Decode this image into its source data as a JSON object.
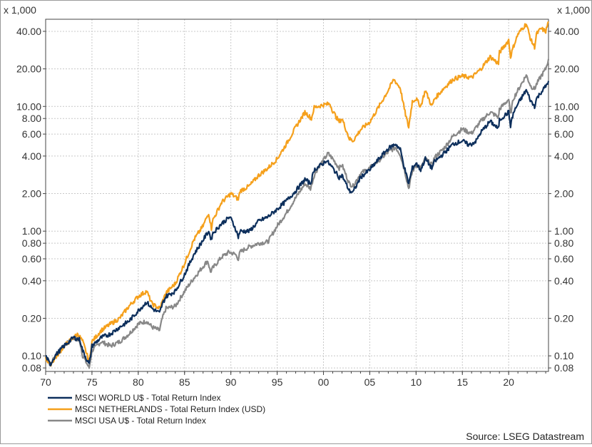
{
  "chart_data": {
    "type": "line",
    "scale_label_left": "x 1,000",
    "scale_label_right": "x 1,000",
    "source": "Source: LSEG Datastream",
    "y_scale": "log",
    "ylim": [
      0.075,
      50
    ],
    "xlim": [
      1970,
      2024.3
    ],
    "grid": true,
    "legend_position": "bottom-left",
    "yticks": [
      {
        "value": 0.08,
        "label": "0.08"
      },
      {
        "value": 0.1,
        "label": "0.10"
      },
      {
        "value": 0.2,
        "label": "0.20"
      },
      {
        "value": 0.4,
        "label": "0.40"
      },
      {
        "value": 0.6,
        "label": "0.60"
      },
      {
        "value": 0.8,
        "label": "0.80"
      },
      {
        "value": 1.0,
        "label": "1.00"
      },
      {
        "value": 2.0,
        "label": "2.00"
      },
      {
        "value": 4.0,
        "label": "4.00"
      },
      {
        "value": 6.0,
        "label": "6.00"
      },
      {
        "value": 8.0,
        "label": "8.00"
      },
      {
        "value": 10.0,
        "label": "10.00"
      },
      {
        "value": 20.0,
        "label": "20.00"
      },
      {
        "value": 40.0,
        "label": "40.00"
      }
    ],
    "xticks": [
      {
        "value": 1970,
        "label": "70"
      },
      {
        "value": 1975,
        "label": "75"
      },
      {
        "value": 1980,
        "label": "80"
      },
      {
        "value": 1985,
        "label": "85"
      },
      {
        "value": 1990,
        "label": "90"
      },
      {
        "value": 1995,
        "label": "95"
      },
      {
        "value": 2000,
        "label": "00"
      },
      {
        "value": 2005,
        "label": "05"
      },
      {
        "value": 2010,
        "label": "10"
      },
      {
        "value": 2015,
        "label": "15"
      },
      {
        "value": 2020,
        "label": "20"
      }
    ],
    "series": [
      {
        "name": "MSCI USA U$ - Total Return Index",
        "color": "#888888",
        "points": [
          [
            1970,
            0.1
          ],
          [
            1970.5,
            0.085
          ],
          [
            1971,
            0.1
          ],
          [
            1972,
            0.12
          ],
          [
            1973,
            0.14
          ],
          [
            1973.7,
            0.13
          ],
          [
            1974,
            0.1
          ],
          [
            1974.7,
            0.08
          ],
          [
            1975,
            0.11
          ],
          [
            1976,
            0.13
          ],
          [
            1977,
            0.12
          ],
          [
            1978,
            0.13
          ],
          [
            1979,
            0.15
          ],
          [
            1980,
            0.18
          ],
          [
            1980.9,
            0.19
          ],
          [
            1981.5,
            0.17
          ],
          [
            1982.3,
            0.16
          ],
          [
            1982.6,
            0.2
          ],
          [
            1983,
            0.24
          ],
          [
            1984,
            0.25
          ],
          [
            1985,
            0.33
          ],
          [
            1986,
            0.42
          ],
          [
            1987.5,
            0.58
          ],
          [
            1987.8,
            0.47
          ],
          [
            1988,
            0.5
          ],
          [
            1989,
            0.62
          ],
          [
            1989.8,
            0.68
          ],
          [
            1990.5,
            0.65
          ],
          [
            1990.8,
            0.6
          ],
          [
            1991,
            0.68
          ],
          [
            1992,
            0.75
          ],
          [
            1993,
            0.8
          ],
          [
            1994,
            0.82
          ],
          [
            1995,
            1.1
          ],
          [
            1996,
            1.4
          ],
          [
            1997,
            1.85
          ],
          [
            1998,
            2.4
          ],
          [
            1998.6,
            2.2
          ],
          [
            1999,
            2.8
          ],
          [
            1999.5,
            3.3
          ],
          [
            2000,
            3.7
          ],
          [
            2000.5,
            4.2
          ],
          [
            2001,
            3.8
          ],
          [
            2001.7,
            3.2
          ],
          [
            2002,
            3.4
          ],
          [
            2002.8,
            2.4
          ],
          [
            2003.2,
            2.3
          ],
          [
            2004,
            2.9
          ],
          [
            2005,
            3.2
          ],
          [
            2006,
            3.7
          ],
          [
            2007,
            4.3
          ],
          [
            2007.8,
            4.7
          ],
          [
            2008.3,
            4.1
          ],
          [
            2008.8,
            3.0
          ],
          [
            2009.2,
            2.2
          ],
          [
            2009.6,
            3.0
          ],
          [
            2010,
            3.4
          ],
          [
            2010.5,
            3.2
          ],
          [
            2011,
            3.8
          ],
          [
            2011.7,
            3.4
          ],
          [
            2012,
            3.9
          ],
          [
            2013,
            4.6
          ],
          [
            2014,
            5.8
          ],
          [
            2015,
            6.6
          ],
          [
            2015.7,
            6.2
          ],
          [
            2016,
            6.1
          ],
          [
            2016.5,
            6.8
          ],
          [
            2017,
            7.6
          ],
          [
            2018,
            9.0
          ],
          [
            2018.9,
            8.2
          ],
          [
            2019,
            9.5
          ],
          [
            2020,
            11.4
          ],
          [
            2020.2,
            8.6
          ],
          [
            2020.5,
            11.5
          ],
          [
            2021,
            13.5
          ],
          [
            2021.9,
            17.8
          ],
          [
            2022.4,
            14.5
          ],
          [
            2022.8,
            13.8
          ],
          [
            2023,
            15.0
          ],
          [
            2023.5,
            17.5
          ],
          [
            2024,
            20.0
          ],
          [
            2024.3,
            24.0
          ]
        ]
      },
      {
        "name": "MSCI NETHERLANDS - Total Return Index (USD)",
        "color": "#f5a01c",
        "points": [
          [
            1970,
            0.095
          ],
          [
            1970.5,
            0.085
          ],
          [
            1971,
            0.095
          ],
          [
            1972,
            0.12
          ],
          [
            1973,
            0.14
          ],
          [
            1973.5,
            0.15
          ],
          [
            1974,
            0.13
          ],
          [
            1974.7,
            0.09
          ],
          [
            1975,
            0.13
          ],
          [
            1976,
            0.16
          ],
          [
            1977,
            0.18
          ],
          [
            1978,
            0.2
          ],
          [
            1979,
            0.25
          ],
          [
            1980,
            0.3
          ],
          [
            1980.9,
            0.33
          ],
          [
            1981.5,
            0.26
          ],
          [
            1982.3,
            0.24
          ],
          [
            1983,
            0.32
          ],
          [
            1984,
            0.38
          ],
          [
            1985,
            0.55
          ],
          [
            1986,
            0.85
          ],
          [
            1987,
            1.1
          ],
          [
            1987.6,
            1.4
          ],
          [
            1987.9,
            1.05
          ],
          [
            1988,
            1.2
          ],
          [
            1989,
            1.7
          ],
          [
            1990,
            2.0
          ],
          [
            1990.8,
            1.8
          ],
          [
            1991,
            2.1
          ],
          [
            1992,
            2.3
          ],
          [
            1993,
            2.8
          ],
          [
            1994,
            3.2
          ],
          [
            1995,
            3.8
          ],
          [
            1996,
            5.0
          ],
          [
            1997,
            6.8
          ],
          [
            1998,
            9.0
          ],
          [
            1998.7,
            8.0
          ],
          [
            1999,
            9.8
          ],
          [
            2000,
            10.3
          ],
          [
            2000.7,
            10.5
          ],
          [
            2001,
            9.2
          ],
          [
            2001.7,
            7.5
          ],
          [
            2002,
            8.0
          ],
          [
            2002.8,
            5.5
          ],
          [
            2003.2,
            5.3
          ],
          [
            2004,
            6.5
          ],
          [
            2005,
            7.5
          ],
          [
            2006,
            10.0
          ],
          [
            2007,
            13.5
          ],
          [
            2007.6,
            16.5
          ],
          [
            2008.3,
            14.0
          ],
          [
            2008.8,
            9.0
          ],
          [
            2009.2,
            6.8
          ],
          [
            2009.6,
            11.0
          ],
          [
            2010,
            11.5
          ],
          [
            2010.5,
            10.0
          ],
          [
            2011,
            13.5
          ],
          [
            2011.7,
            10.0
          ],
          [
            2012,
            11.5
          ],
          [
            2013,
            14.0
          ],
          [
            2014,
            16.5
          ],
          [
            2015,
            17.5
          ],
          [
            2016,
            17.0
          ],
          [
            2017,
            20.0
          ],
          [
            2018,
            25.0
          ],
          [
            2018.9,
            22.0
          ],
          [
            2019,
            27.0
          ],
          [
            2020,
            34.0
          ],
          [
            2020.2,
            25.0
          ],
          [
            2020.5,
            30.0
          ],
          [
            2021,
            38.0
          ],
          [
            2021.9,
            46.0
          ],
          [
            2022.4,
            34.0
          ],
          [
            2022.8,
            30.0
          ],
          [
            2023,
            38.0
          ],
          [
            2023.5,
            42.0
          ],
          [
            2024,
            40.0
          ],
          [
            2024.3,
            48.0
          ]
        ]
      },
      {
        "name": "MSCI WORLD U$ - Total Return Index",
        "color": "#0d2f5c",
        "points": [
          [
            1970,
            0.1
          ],
          [
            1970.5,
            0.085
          ],
          [
            1971,
            0.1
          ],
          [
            1972,
            0.12
          ],
          [
            1973,
            0.14
          ],
          [
            1973.7,
            0.135
          ],
          [
            1974,
            0.11
          ],
          [
            1974.7,
            0.085
          ],
          [
            1975,
            0.12
          ],
          [
            1976,
            0.14
          ],
          [
            1977,
            0.15
          ],
          [
            1978,
            0.17
          ],
          [
            1979,
            0.19
          ],
          [
            1980,
            0.23
          ],
          [
            1980.9,
            0.27
          ],
          [
            1981.5,
            0.24
          ],
          [
            1982.3,
            0.22
          ],
          [
            1982.6,
            0.26
          ],
          [
            1983,
            0.3
          ],
          [
            1984,
            0.33
          ],
          [
            1985,
            0.45
          ],
          [
            1986,
            0.65
          ],
          [
            1987,
            0.85
          ],
          [
            1987.6,
            1.0
          ],
          [
            1987.9,
            0.85
          ],
          [
            1988,
            0.95
          ],
          [
            1989,
            1.15
          ],
          [
            1989.9,
            1.3
          ],
          [
            1990.5,
            1.05
          ],
          [
            1990.8,
            0.9
          ],
          [
            1991,
            1.0
          ],
          [
            1992,
            1.0
          ],
          [
            1993,
            1.2
          ],
          [
            1994,
            1.3
          ],
          [
            1995,
            1.5
          ],
          [
            1996,
            1.75
          ],
          [
            1997,
            2.1
          ],
          [
            1998,
            2.6
          ],
          [
            1998.6,
            2.4
          ],
          [
            1999,
            3.1
          ],
          [
            2000,
            3.5
          ],
          [
            2000.3,
            3.7
          ],
          [
            2001,
            3.2
          ],
          [
            2001.7,
            2.7
          ],
          [
            2002,
            2.8
          ],
          [
            2002.8,
            2.1
          ],
          [
            2003.2,
            2.05
          ],
          [
            2004,
            2.7
          ],
          [
            2005,
            3.1
          ],
          [
            2006,
            3.8
          ],
          [
            2007,
            4.6
          ],
          [
            2007.8,
            5.0
          ],
          [
            2008.3,
            4.5
          ],
          [
            2008.8,
            3.1
          ],
          [
            2009.2,
            2.4
          ],
          [
            2009.6,
            3.2
          ],
          [
            2010,
            3.5
          ],
          [
            2010.5,
            3.1
          ],
          [
            2011,
            3.8
          ],
          [
            2011.7,
            3.2
          ],
          [
            2012,
            3.6
          ],
          [
            2013,
            4.2
          ],
          [
            2014,
            5.0
          ],
          [
            2015,
            5.3
          ],
          [
            2015.7,
            4.9
          ],
          [
            2016,
            5.0
          ],
          [
            2016.5,
            5.3
          ],
          [
            2017,
            6.2
          ],
          [
            2018,
            7.6
          ],
          [
            2018.9,
            6.6
          ],
          [
            2019,
            7.8
          ],
          [
            2020,
            9.0
          ],
          [
            2020.2,
            7.0
          ],
          [
            2020.5,
            8.8
          ],
          [
            2021,
            10.5
          ],
          [
            2021.9,
            13.5
          ],
          [
            2022.4,
            11.0
          ],
          [
            2022.8,
            10.0
          ],
          [
            2023,
            11.5
          ],
          [
            2023.5,
            13.0
          ],
          [
            2024,
            14.5
          ],
          [
            2024.3,
            16.0
          ]
        ]
      }
    ],
    "legend": [
      {
        "label": "MSCI WORLD U$ - Total Return Index",
        "color": "#0d2f5c"
      },
      {
        "label": "MSCI NETHERLANDS - Total Return Index (USD)",
        "color": "#f5a01c"
      },
      {
        "label": "MSCI USA U$ - Total Return Index",
        "color": "#888888"
      }
    ]
  }
}
